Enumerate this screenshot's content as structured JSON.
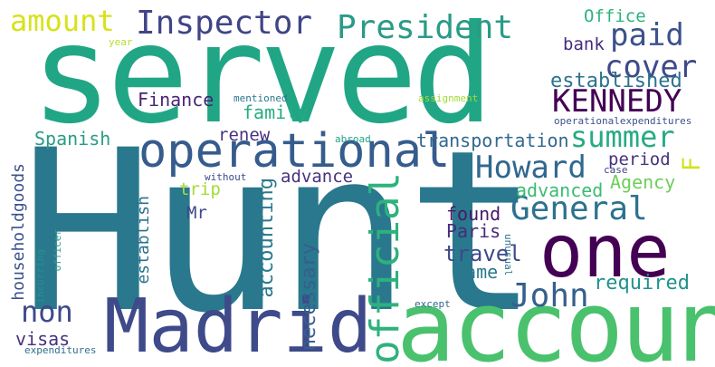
{
  "words": [
    {
      "id": "served",
      "text": "served",
      "color": "#21a685"
    },
    {
      "id": "hunt",
      "text": "Hunt",
      "color": "#2a788e"
    },
    {
      "id": "account",
      "text": "account",
      "color": "#4ac16d"
    },
    {
      "id": "madrid",
      "text": "Madrid",
      "color": "#3e4a89"
    },
    {
      "id": "one",
      "text": "one",
      "color": "#440154"
    },
    {
      "id": "operational",
      "text": "operational",
      "color": "#365c8d"
    },
    {
      "id": "official",
      "text": "official",
      "color": "#2db27d"
    },
    {
      "id": "kennedy",
      "text": "KENNEDY",
      "color": "#440154"
    },
    {
      "id": "president",
      "text": "President",
      "color": "#2a9b87"
    },
    {
      "id": "inspector",
      "text": "Inspector",
      "color": "#414487"
    },
    {
      "id": "general",
      "text": "General",
      "color": "#2c728e"
    },
    {
      "id": "john",
      "text": "John",
      "color": "#355f8d"
    },
    {
      "id": "howard",
      "text": "Howard",
      "color": "#31688e"
    },
    {
      "id": "paid",
      "text": "paid",
      "color": "#3b528b"
    },
    {
      "id": "cover",
      "text": "cover",
      "color": "#3e4a89"
    },
    {
      "id": "summer",
      "text": "summer",
      "color": "#25ab82"
    },
    {
      "id": "amount",
      "text": "amount",
      "color": "#d7e219"
    },
    {
      "id": "non",
      "text": "non",
      "color": "#3e4a89"
    },
    {
      "id": "necessary",
      "text": "necessary",
      "color": "#355f8d"
    },
    {
      "id": "accounting",
      "text": "accounting",
      "color": "#2a788e"
    },
    {
      "id": "established",
      "text": "established",
      "color": "#2c728e"
    },
    {
      "id": "required",
      "text": "required",
      "color": "#20928c"
    },
    {
      "id": "advanced",
      "text": "advanced",
      "color": "#3bbb75"
    },
    {
      "id": "travel",
      "text": "travel",
      "color": "#3e4989"
    },
    {
      "id": "transportation",
      "text": "transportation",
      "color": "#31688e"
    },
    {
      "id": "agency",
      "text": "Agency",
      "color": "#6ece58"
    },
    {
      "id": "f",
      "text": "F",
      "color": "#d2e21b"
    },
    {
      "id": "finance",
      "text": "Finance",
      "color": "#482576"
    },
    {
      "id": "family",
      "text": "family",
      "color": "#25ab82"
    },
    {
      "id": "spanish",
      "text": "Spanish",
      "color": "#2a9b87"
    },
    {
      "id": "householdgoods",
      "text": "householdgoods",
      "color": "#3b528b"
    },
    {
      "id": "visas",
      "text": "visas",
      "color": "#46327e"
    },
    {
      "id": "establish",
      "text": "establish",
      "color": "#2c728e"
    },
    {
      "id": "renew",
      "text": "renew",
      "color": "#46337e"
    },
    {
      "id": "advance",
      "text": "advance",
      "color": "#46337e"
    },
    {
      "id": "trip",
      "text": "trip",
      "color": "#a5db36"
    },
    {
      "id": "mr",
      "text": "Mr",
      "color": "#3e4a89"
    },
    {
      "id": "found",
      "text": "found",
      "color": "#48186a"
    },
    {
      "id": "paris",
      "text": "Paris",
      "color": "#472c7a"
    },
    {
      "id": "name",
      "text": "name",
      "color": "#2a788e"
    },
    {
      "id": "period",
      "text": "period",
      "color": "#46337e"
    },
    {
      "id": "office",
      "text": "Office",
      "color": "#2db27d"
    },
    {
      "id": "bank",
      "text": "bank",
      "color": "#472c7a"
    },
    {
      "id": "case",
      "text": "case",
      "color": "#404387"
    },
    {
      "id": "unusual",
      "text": "unusual",
      "color": "#2c728e"
    },
    {
      "id": "except",
      "text": "except",
      "color": "#31688e"
    },
    {
      "id": "incurring",
      "text": "incurring",
      "color": "#1f948c"
    },
    {
      "id": "officer",
      "text": "officer",
      "color": "#2a9b87"
    },
    {
      "id": "expenditures",
      "text": "expenditures",
      "color": "#2e6f8e"
    },
    {
      "id": "year",
      "text": "year",
      "color": "#b5de2b"
    },
    {
      "id": "mentioned",
      "text": "mentioned",
      "color": "#2a788e"
    },
    {
      "id": "assignment",
      "text": "assignment",
      "color": "#a0da39"
    },
    {
      "id": "abroad",
      "text": "abroad",
      "color": "#20a386"
    },
    {
      "id": "without",
      "text": "without",
      "color": "#3e4a89"
    },
    {
      "id": "operationalexpenditures",
      "text": "operationalexpenditures",
      "color": "#3b528b"
    }
  ]
}
